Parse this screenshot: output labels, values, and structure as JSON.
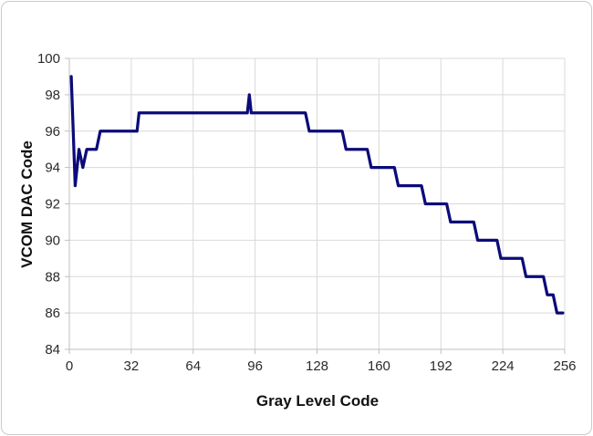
{
  "figure": {
    "background": "#ffffff",
    "frame_border_color": "#c9c9c9"
  },
  "chart_data": {
    "type": "line",
    "title": "",
    "xlabel": "Gray Level Code",
    "ylabel": "VCOM DAC Code",
    "xlim": [
      0,
      256
    ],
    "ylim": [
      84,
      100
    ],
    "xticks": [
      0,
      32,
      64,
      96,
      128,
      160,
      192,
      224,
      256
    ],
    "yticks": [
      84,
      86,
      88,
      90,
      92,
      94,
      96,
      98,
      100
    ],
    "grid": true,
    "legend": "none",
    "line_color": "#0b0b7a",
    "gridline_color": "#d9d9d9",
    "axis_line_color": "#bfbfbf",
    "tick_label_color": "#2b2b2b",
    "axis_title_color": "#111111",
    "series": [
      {
        "name": "VCOM DAC Code vs Gray Level Code",
        "points": [
          [
            1,
            99
          ],
          [
            3,
            93
          ],
          [
            5,
            95
          ],
          [
            7,
            94
          ],
          [
            9,
            95
          ],
          [
            14,
            95
          ],
          [
            16,
            96
          ],
          [
            35,
            96
          ],
          [
            36,
            97
          ],
          [
            92,
            97
          ],
          [
            93,
            98
          ],
          [
            94,
            97
          ],
          [
            122,
            97
          ],
          [
            124,
            96
          ],
          [
            141,
            96
          ],
          [
            143,
            95
          ],
          [
            154,
            95
          ],
          [
            156,
            94
          ],
          [
            168,
            94
          ],
          [
            170,
            93
          ],
          [
            182,
            93
          ],
          [
            184,
            92
          ],
          [
            195,
            92
          ],
          [
            197,
            91
          ],
          [
            209,
            91
          ],
          [
            211,
            90
          ],
          [
            221,
            90
          ],
          [
            223,
            89
          ],
          [
            234,
            89
          ],
          [
            236,
            88
          ],
          [
            245,
            88
          ],
          [
            247,
            87
          ],
          [
            250,
            87
          ],
          [
            252,
            86
          ],
          [
            255,
            86
          ]
        ]
      }
    ]
  }
}
